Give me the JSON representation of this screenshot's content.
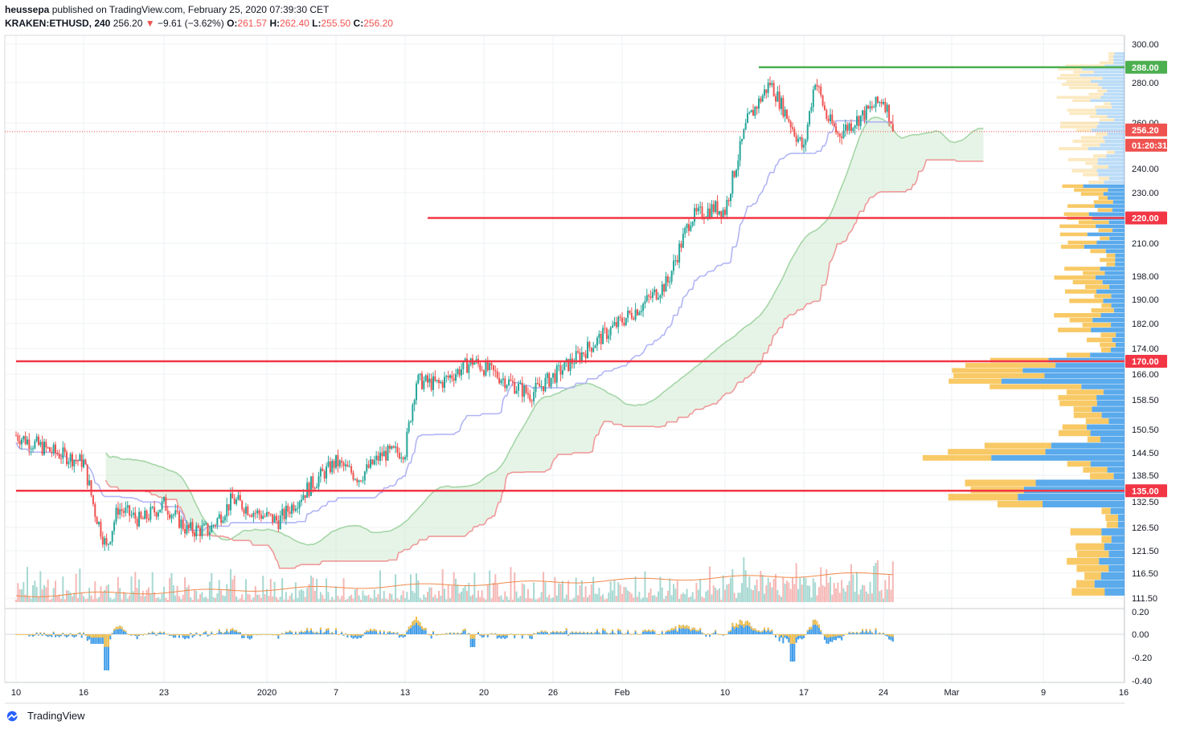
{
  "header": {
    "publisher": "heussepa",
    "published_text": "published on TradingView.com, February 25, 2020 07:39:30 CET",
    "symbol": "KRAKEN:ETHUSD, 240",
    "last": "256.20",
    "change": "−9.61 (−3.62%)",
    "o_label": "O:",
    "o": "261.57",
    "h_label": "H:",
    "h": "262.40",
    "l_label": "L:",
    "l": "255.50",
    "c_label": "C:",
    "c": "256.20"
  },
  "footer": {
    "brand": "TradingView"
  },
  "colors": {
    "up": "#26a69a",
    "down": "#ef5350",
    "resistance": "#4caf50",
    "support": "#f23645",
    "cloud_up": "#a5d6a7",
    "cloud_down": "#ef9a9a",
    "baseline": "#b2b5f5",
    "vp_sell": "#f7c04a",
    "vp_buy": "#3d9be9",
    "grid": "#eef0f3"
  },
  "chart_data": {
    "type": "candlestick",
    "symbol": "KRAKEN:ETHUSD",
    "timeframe": "240",
    "y_axis": {
      "ticks": [
        "300.00",
        "280.00",
        "260.00",
        "240.00",
        "230.00",
        "210.00",
        "198.00",
        "190.00",
        "182.00",
        "174.00",
        "166.00",
        "158.50",
        "150.50",
        "144.50",
        "138.50",
        "132.50",
        "126.50",
        "121.50",
        "116.50",
        "111.50"
      ],
      "scale": "log"
    },
    "x_axis": {
      "ticks": [
        "10",
        "16",
        "23",
        "2020",
        "7",
        "13",
        "20",
        "26",
        "Feb",
        "10",
        "17",
        "24",
        "Mar",
        "9",
        "16"
      ]
    },
    "price_labels": [
      {
        "value": "288.00",
        "color": "#4caf50"
      },
      {
        "value": "256.20",
        "color": "#ef5350"
      },
      {
        "value": "01:20:31",
        "color": "#ef5350"
      },
      {
        "value": "220.00",
        "color": "#f23645"
      },
      {
        "value": "170.00",
        "color": "#f23645"
      },
      {
        "value": "135.00",
        "color": "#f23645"
      }
    ],
    "horizontal_lines": [
      {
        "price": 288,
        "color": "#4caf50",
        "start": "Feb 13"
      },
      {
        "price": 220,
        "color": "#f23645",
        "start": "Jan 15"
      },
      {
        "price": 170,
        "color": "#f23645",
        "start": "Dec 10"
      },
      {
        "price": 135,
        "color": "#f23645",
        "start": "Dec 10"
      }
    ],
    "price_path": [
      {
        "date": "Dec 10",
        "close": 149
      },
      {
        "date": "Dec 13",
        "close": 145
      },
      {
        "date": "Dec 16",
        "close": 142
      },
      {
        "date": "Dec 17",
        "close": 130
      },
      {
        "date": "Dec 18",
        "close": 122
      },
      {
        "date": "Dec 19",
        "close": 131
      },
      {
        "date": "Dec 21",
        "close": 128
      },
      {
        "date": "Dec 23",
        "close": 132
      },
      {
        "date": "Dec 25",
        "close": 126
      },
      {
        "date": "Dec 27",
        "close": 126
      },
      {
        "date": "Dec 29",
        "close": 133
      },
      {
        "date": "Dec 31",
        "close": 130
      },
      {
        "date": "Jan 2",
        "close": 128
      },
      {
        "date": "Jan 4",
        "close": 134
      },
      {
        "date": "Jan 7",
        "close": 142
      },
      {
        "date": "Jan 9",
        "close": 138
      },
      {
        "date": "Jan 11",
        "close": 144
      },
      {
        "date": "Jan 13",
        "close": 145
      },
      {
        "date": "Jan 14",
        "close": 164
      },
      {
        "date": "Jan 16",
        "close": 163
      },
      {
        "date": "Jan 19",
        "close": 170
      },
      {
        "date": "Jan 21",
        "close": 166
      },
      {
        "date": "Jan 24",
        "close": 160
      },
      {
        "date": "Jan 27",
        "close": 168
      },
      {
        "date": "Jan 30",
        "close": 177
      },
      {
        "date": "Feb 1",
        "close": 183
      },
      {
        "date": "Feb 3",
        "close": 189
      },
      {
        "date": "Feb 5",
        "close": 196
      },
      {
        "date": "Feb 7",
        "close": 220
      },
      {
        "date": "Feb 9",
        "close": 224
      },
      {
        "date": "Feb 10",
        "close": 223
      },
      {
        "date": "Feb 12",
        "close": 261
      },
      {
        "date": "Feb 14",
        "close": 280
      },
      {
        "date": "Feb 16",
        "close": 258
      },
      {
        "date": "Feb 17",
        "close": 248
      },
      {
        "date": "Feb 18",
        "close": 282
      },
      {
        "date": "Feb 19",
        "close": 263
      },
      {
        "date": "Feb 20",
        "close": 255
      },
      {
        "date": "Feb 22",
        "close": 263
      },
      {
        "date": "Feb 24",
        "close": 272
      },
      {
        "date": "Feb 25",
        "close": 256.2
      }
    ],
    "volume_profile": "horizontal buy/sell histogram on right edge",
    "oscillator": {
      "ticks": [
        "0.20",
        "0.00",
        "-0.20",
        "-0.40"
      ]
    }
  }
}
